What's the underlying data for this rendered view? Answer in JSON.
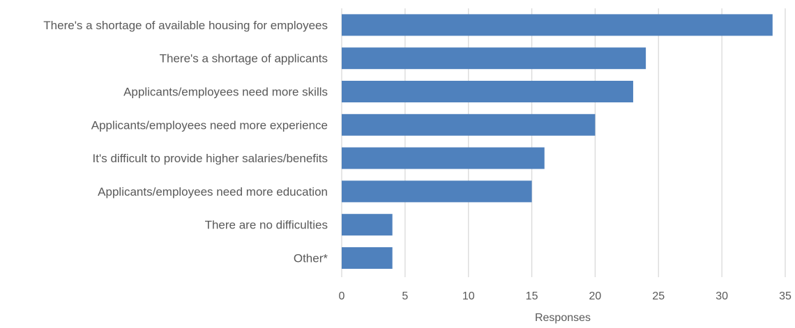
{
  "chart_data": {
    "type": "bar",
    "orientation": "horizontal",
    "categories": [
      "There's a shortage of available housing for employees",
      "There's a shortage of applicants",
      "Applicants/employees need more skills",
      "Applicants/employees need more experience",
      "It's difficult to provide higher salaries/benefits",
      "Applicants/employees need more education",
      "There are no difficulties",
      "Other*"
    ],
    "values": [
      34,
      24,
      23,
      20,
      16,
      15,
      4,
      4
    ],
    "title": "",
    "xlabel": "Responses",
    "ylabel": "",
    "xlim": [
      0,
      35
    ],
    "xticks": [
      "0",
      "5",
      "10",
      "15",
      "20",
      "25",
      "30",
      "35"
    ],
    "grid": "vertical",
    "legend": "none",
    "bar_color": "#4f81bd",
    "grid_color": "#d9d9d9",
    "text_color": "#595959"
  }
}
